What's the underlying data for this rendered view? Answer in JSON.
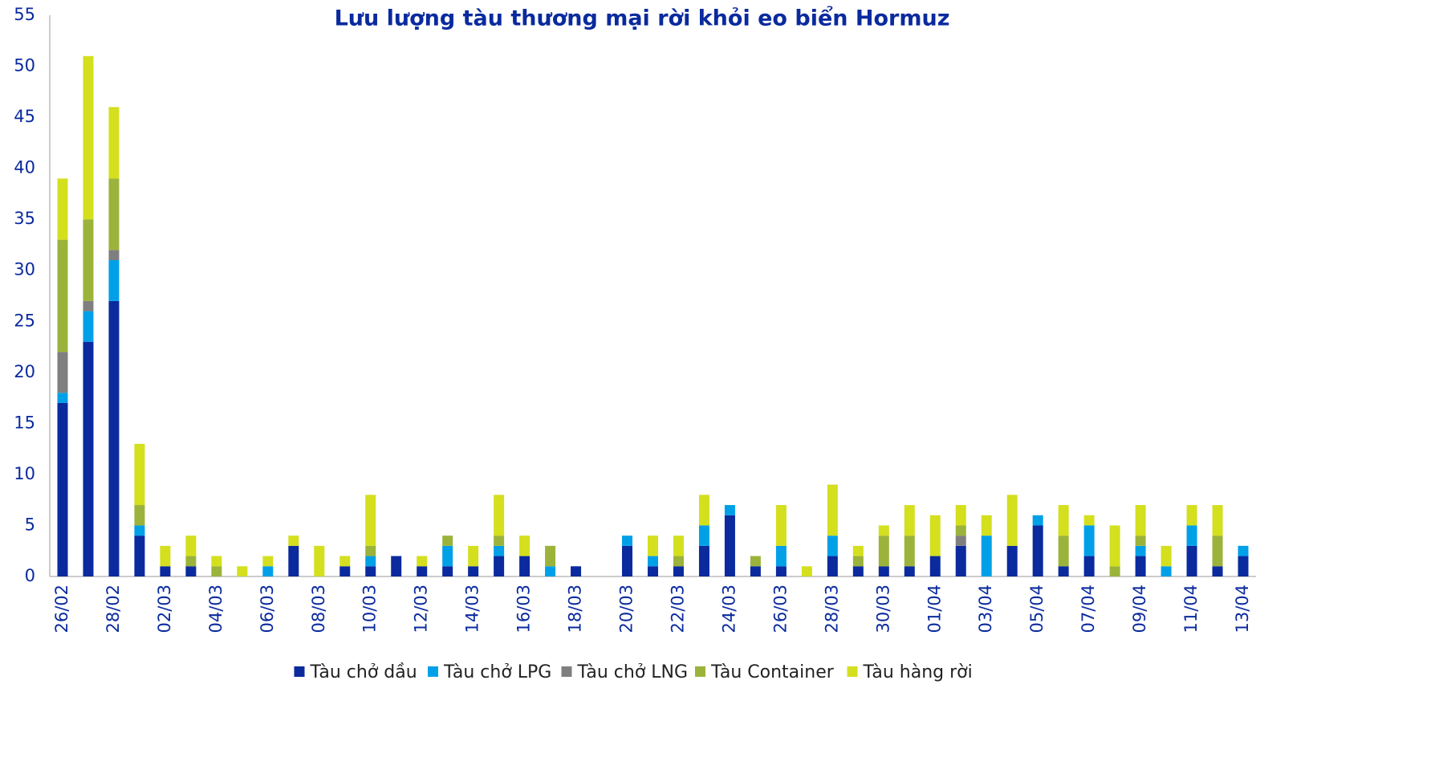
{
  "chart_data": {
    "type": "stacked_bar",
    "title": "Lưu lượng tàu thương mại rời khỏi eo biển Hormuz",
    "categories": [
      "26/02",
      null,
      "28/02",
      null,
      "02/03",
      null,
      "04/03",
      null,
      "06/03",
      null,
      "08/03",
      null,
      "10/03",
      null,
      "12/03",
      null,
      "14/03",
      null,
      "16/03",
      null,
      "18/03",
      null,
      "20/03",
      null,
      "22/03",
      null,
      "24/03",
      null,
      "26/03",
      null,
      "28/03",
      null,
      "30/03",
      null,
      "01/04",
      null,
      "03/04",
      null,
      "05/04",
      null,
      "07/04",
      null,
      "09/04",
      null,
      "11/04",
      null,
      "13/04"
    ],
    "series": [
      {
        "name": "Tàu chở dầu",
        "color": "#0a2a9e",
        "values": [
          17,
          23,
          27,
          4,
          1,
          1,
          0,
          0,
          0,
          3,
          0,
          1,
          1,
          2,
          1,
          1,
          1,
          2,
          2,
          0,
          1,
          0,
          3,
          1,
          1,
          3,
          6,
          1,
          1,
          0,
          2,
          1,
          1,
          1,
          2,
          3,
          0,
          3,
          5,
          1,
          2,
          0,
          2,
          0,
          3,
          1,
          2
        ]
      },
      {
        "name": "Tàu chở LPG",
        "color": "#00a0e8",
        "values": [
          1,
          3,
          4,
          1,
          0,
          0,
          0,
          0,
          1,
          0,
          0,
          0,
          1,
          0,
          0,
          2,
          0,
          1,
          0,
          1,
          0,
          0,
          1,
          1,
          0,
          2,
          1,
          0,
          2,
          0,
          2,
          0,
          0,
          0,
          0,
          0,
          4,
          0,
          1,
          0,
          3,
          0,
          1,
          1,
          2,
          0,
          1
        ]
      },
      {
        "name": "Tàu chở LNG",
        "color": "#7f7f7f",
        "values": [
          4,
          1,
          1,
          0,
          0,
          0,
          0,
          0,
          0,
          0,
          0,
          0,
          0,
          0,
          0,
          0,
          0,
          0,
          0,
          0,
          0,
          0,
          0,
          0,
          0,
          0,
          0,
          0,
          0,
          0,
          0,
          0,
          0,
          0,
          0,
          1,
          0,
          0,
          0,
          0,
          0,
          0,
          0,
          0,
          0,
          0,
          0
        ]
      },
      {
        "name": "Tàu Container",
        "color": "#9bb33a",
        "values": [
          11,
          8,
          7,
          2,
          0,
          1,
          1,
          0,
          0,
          0,
          0,
          0,
          1,
          0,
          0,
          1,
          0,
          1,
          0,
          2,
          0,
          0,
          0,
          0,
          1,
          0,
          0,
          1,
          0,
          0,
          0,
          1,
          3,
          3,
          0,
          1,
          0,
          0,
          0,
          3,
          0,
          1,
          1,
          0,
          0,
          3,
          0
        ]
      },
      {
        "name": "Tàu hàng rời",
        "color": "#d4df1e",
        "values": [
          6,
          16,
          7,
          6,
          2,
          2,
          1,
          1,
          1,
          1,
          3,
          1,
          5,
          0,
          1,
          0,
          2,
          4,
          2,
          0,
          0,
          0,
          0,
          2,
          2,
          3,
          0,
          0,
          4,
          1,
          5,
          1,
          1,
          3,
          4,
          2,
          2,
          5,
          0,
          3,
          1,
          4,
          3,
          2,
          2,
          3,
          0
        ]
      }
    ],
    "ylim": [
      0,
      55
    ],
    "yticks": [
      0,
      5,
      10,
      15,
      20,
      25,
      30,
      35,
      40,
      45,
      50,
      55
    ],
    "grid": false,
    "legend": "bottom"
  }
}
